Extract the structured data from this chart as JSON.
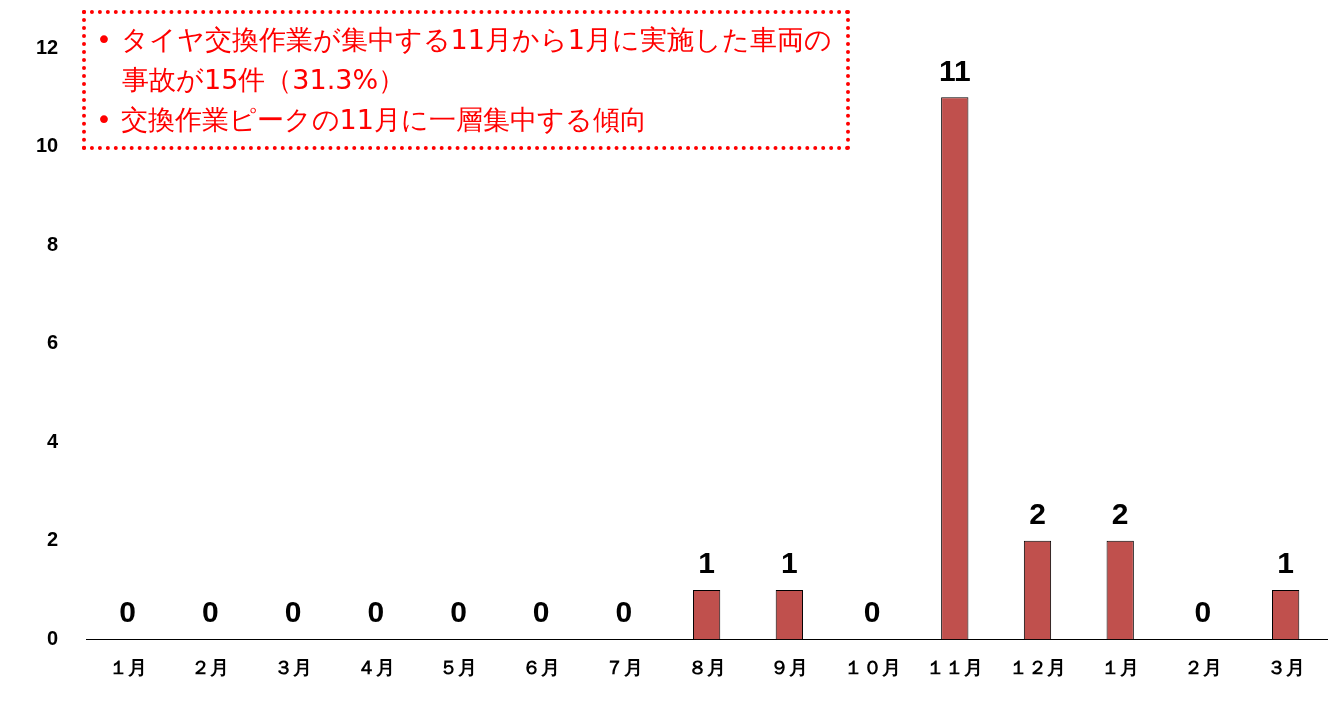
{
  "chart_data": {
    "type": "bar",
    "categories": [
      "１月",
      "２月",
      "３月",
      "４月",
      "５月",
      "６月",
      "７月",
      "８月",
      "９月",
      "１０月",
      "１１月",
      "１２月",
      "１月",
      "２月",
      "３月"
    ],
    "values": [
      0,
      0,
      0,
      0,
      0,
      0,
      0,
      1,
      1,
      0,
      11,
      2,
      2,
      0,
      1
    ],
    "color": "#c0504d",
    "ylim": [
      0,
      12
    ],
    "yticks": [
      0,
      2,
      4,
      6,
      8,
      10,
      12
    ],
    "grid": false,
    "legend": false,
    "data_labels": true,
    "annotations": [
      "• タイヤ交換作業が集中する11月から1月に実施した車両の事故が15件（31.3%）",
      "• 交換作業ピークの11月に一層集中する傾向"
    ]
  }
}
